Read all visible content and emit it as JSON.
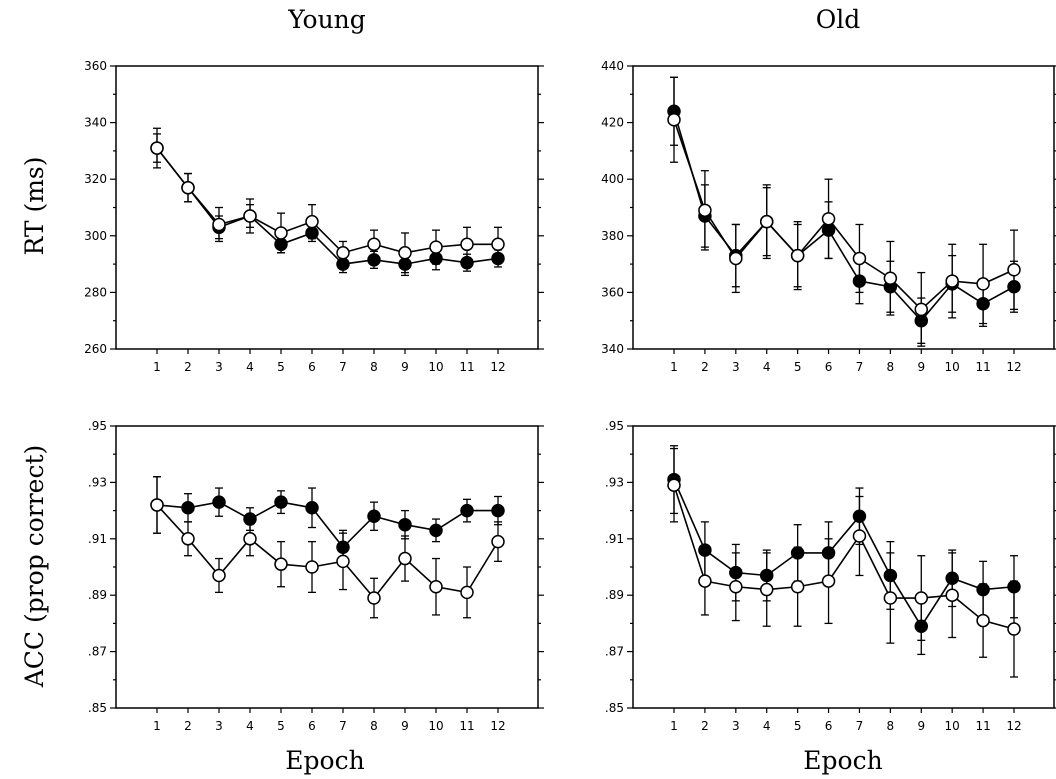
{
  "col_titles": [
    "Young",
    "Old"
  ],
  "row_labels": [
    "RT (ms)",
    "ACC (prop correct)"
  ],
  "xlabel": "Epoch",
  "chart_data": [
    {
      "type": "line",
      "id": "young-rt",
      "x": [
        1,
        2,
        3,
        4,
        5,
        6,
        7,
        8,
        9,
        10,
        11,
        12
      ],
      "ylim": [
        260,
        360
      ],
      "yticks": [
        260,
        280,
        300,
        320,
        340,
        360
      ],
      "ytick_labels": [
        "260",
        "280",
        "300",
        "320",
        "340",
        "360"
      ],
      "series": [
        {
          "marker": "filled",
          "values": [
            331,
            317,
            303,
            307,
            297,
            301,
            290,
            291.5,
            290,
            292,
            290.5,
            292
          ],
          "err": [
            5,
            5,
            4,
            4,
            3,
            3,
            3,
            3,
            4,
            4,
            3,
            3
          ]
        },
        {
          "marker": "open",
          "values": [
            331,
            317,
            304,
            307,
            301,
            305,
            294,
            297,
            294,
            296,
            297,
            297
          ],
          "err": [
            7,
            5,
            6,
            6,
            7,
            6,
            4,
            5,
            7,
            6,
            6,
            6
          ]
        }
      ]
    },
    {
      "type": "line",
      "id": "old-rt",
      "x": [
        1,
        2,
        3,
        4,
        5,
        6,
        7,
        8,
        9,
        10,
        11,
        12
      ],
      "ylim": [
        340,
        440
      ],
      "yticks": [
        340,
        360,
        380,
        400,
        420,
        440
      ],
      "ytick_labels": [
        "340",
        "360",
        "380",
        "400",
        "420",
        "440"
      ],
      "series": [
        {
          "marker": "filled",
          "values": [
            424,
            387,
            373,
            385,
            373,
            382,
            364,
            362,
            350,
            363,
            356,
            362
          ],
          "err": [
            12,
            11,
            11,
            12,
            11,
            10,
            8,
            9,
            8,
            10,
            8,
            9
          ]
        },
        {
          "marker": "open",
          "values": [
            421,
            389,
            372,
            385,
            373,
            386,
            372,
            365,
            354,
            364,
            363,
            368
          ],
          "err": [
            15,
            14,
            12,
            13,
            12,
            14,
            12,
            13,
            13,
            13,
            14,
            14
          ]
        }
      ]
    },
    {
      "type": "line",
      "id": "young-acc",
      "x": [
        1,
        2,
        3,
        4,
        5,
        6,
        7,
        8,
        9,
        10,
        11,
        12
      ],
      "ylim": [
        0.85,
        0.95
      ],
      "yticks": [
        0.85,
        0.87,
        0.89,
        0.91,
        0.93,
        0.95
      ],
      "ytick_labels": [
        ".85",
        ".87",
        ".89",
        ".91",
        ".93",
        ".95"
      ],
      "series": [
        {
          "marker": "filled",
          "values": [
            0.922,
            0.921,
            0.923,
            0.917,
            0.923,
            0.921,
            0.907,
            0.918,
            0.915,
            0.913,
            0.92,
            0.92
          ],
          "err": [
            0.01,
            0.005,
            0.005,
            0.004,
            0.004,
            0.007,
            0.006,
            0.005,
            0.005,
            0.004,
            0.004,
            0.005
          ]
        },
        {
          "marker": "open",
          "values": [
            0.922,
            0.91,
            0.897,
            0.91,
            0.901,
            0.9,
            0.902,
            0.889,
            0.903,
            0.893,
            0.891,
            0.909
          ],
          "err": [
            0.01,
            0.006,
            0.006,
            0.006,
            0.008,
            0.009,
            0.01,
            0.007,
            0.008,
            0.01,
            0.009,
            0.007
          ]
        }
      ]
    },
    {
      "type": "line",
      "id": "old-acc",
      "x": [
        1,
        2,
        3,
        4,
        5,
        6,
        7,
        8,
        9,
        10,
        11,
        12
      ],
      "ylim": [
        0.85,
        0.95
      ],
      "yticks": [
        0.85,
        0.87,
        0.89,
        0.91,
        0.93,
        0.95
      ],
      "ytick_labels": [
        ".85",
        ".87",
        ".89",
        ".91",
        ".93",
        ".95"
      ],
      "series": [
        {
          "marker": "filled",
          "values": [
            0.931,
            0.906,
            0.898,
            0.897,
            0.905,
            0.905,
            0.918,
            0.897,
            0.879,
            0.896,
            0.892,
            0.893
          ],
          "err": [
            0.012,
            0.01,
            0.01,
            0.009,
            0.01,
            0.011,
            0.01,
            0.012,
            0.01,
            0.01,
            0.01,
            0.011
          ]
        },
        {
          "marker": "open",
          "values": [
            0.929,
            0.895,
            0.893,
            0.892,
            0.893,
            0.895,
            0.911,
            0.889,
            0.889,
            0.89,
            0.881,
            0.878
          ],
          "err": [
            0.013,
            0.012,
            0.012,
            0.013,
            0.014,
            0.015,
            0.014,
            0.016,
            0.015,
            0.015,
            0.013,
            0.017
          ]
        }
      ]
    }
  ]
}
